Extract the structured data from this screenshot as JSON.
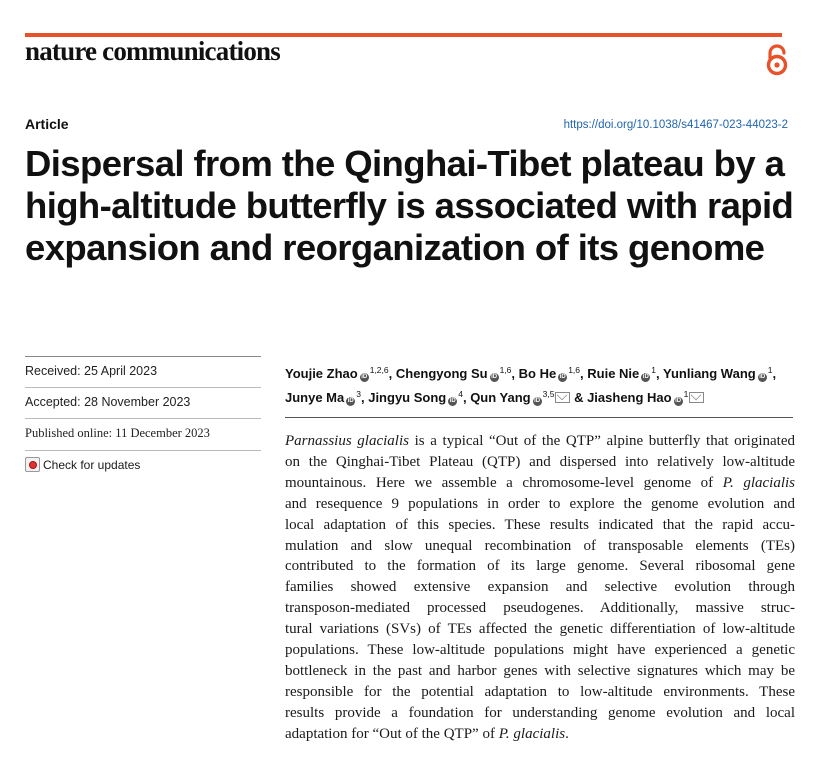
{
  "header": {
    "journal": "nature communications",
    "article_type": "Article",
    "doi": "https://doi.org/10.1038/s41467-023-44023-2",
    "accent_color": "#e8522a",
    "open_access_icon": "open-access-lock-icon"
  },
  "title": "Dispersal from the Qinghai-Tibet plateau by a high-altitude butterfly is associated with rapid expansion and reorganization of its genome",
  "dates": {
    "received": "Received: 25 April 2023",
    "accepted": "Accepted: 28 November 2023",
    "published": "Published online: 11 December 2023",
    "check_updates": "Check for updates"
  },
  "authors": [
    {
      "name": "Youjie Zhao",
      "aff": "1,2,6",
      "orcid": true,
      "corresponding": false,
      "sep": ", "
    },
    {
      "name": "Chengyong Su",
      "aff": "1,6",
      "orcid": true,
      "corresponding": false,
      "sep": ", "
    },
    {
      "name": "Bo He",
      "aff": "1,6",
      "orcid": true,
      "corresponding": false,
      "sep": ", "
    },
    {
      "name": "Ruie Nie",
      "aff": "1",
      "orcid": true,
      "corresponding": false,
      "sep": ", "
    },
    {
      "name": "Yunliang Wang",
      "aff": "1",
      "orcid": true,
      "corresponding": false,
      "sep": ","
    },
    {
      "name": "Junye Ma",
      "aff": "3",
      "orcid": true,
      "corresponding": false,
      "sep": ", "
    },
    {
      "name": "Jingyu Song",
      "aff": "4",
      "orcid": true,
      "corresponding": false,
      "sep": ", "
    },
    {
      "name": "Qun Yang",
      "aff": "3,5",
      "orcid": true,
      "corresponding": true,
      "sep": " & "
    },
    {
      "name": "Jiasheng Hao",
      "aff": "1",
      "orcid": true,
      "corresponding": true,
      "sep": ""
    }
  ],
  "abstract_lines": [
    [
      {
        "t": "Parnassius glacialis",
        "i": true
      },
      {
        "t": " is a typical “Out of the QTP” alpine butterfly that originated"
      }
    ],
    [
      {
        "t": "on the Qinghai-Tibet Plateau (QTP) and dispersed into relatively low-altitude"
      }
    ],
    [
      {
        "t": "mountainous. Here we assemble a chromosome-level genome of "
      },
      {
        "t": "P. glacialis",
        "i": true
      }
    ],
    [
      {
        "t": "and resequence 9 populations in order to explore the genome evolution and"
      }
    ],
    [
      {
        "t": "local adaptation of this species. These results indicated that the rapid accu-"
      }
    ],
    [
      {
        "t": "mulation and slow unequal recombination of transposable elements (TEs)"
      }
    ],
    [
      {
        "t": "contributed to the formation of its large genome. Several ribosomal gene"
      }
    ],
    [
      {
        "t": "families showed extensive expansion and selective evolution through"
      }
    ],
    [
      {
        "t": "transposon-mediated processed pseudogenes. Additionally, massive struc-"
      }
    ],
    [
      {
        "t": "tural variations (SVs) of TEs affected the genetic differentiation of low-altitude"
      }
    ],
    [
      {
        "t": "populations. These low-altitude populations might have experienced a genetic"
      }
    ],
    [
      {
        "t": "bottleneck in the past and harbor genes with selective signatures which may be"
      }
    ],
    [
      {
        "t": "responsible for the potential adaptation to low-altitude environments. These"
      }
    ],
    [
      {
        "t": "results provide a foundation for understanding genome evolution and local"
      }
    ],
    [
      {
        "t": "adaptation for “Out of the QTP” of "
      },
      {
        "t": "P. glacialis",
        "i": true
      },
      {
        "t": "."
      }
    ]
  ]
}
